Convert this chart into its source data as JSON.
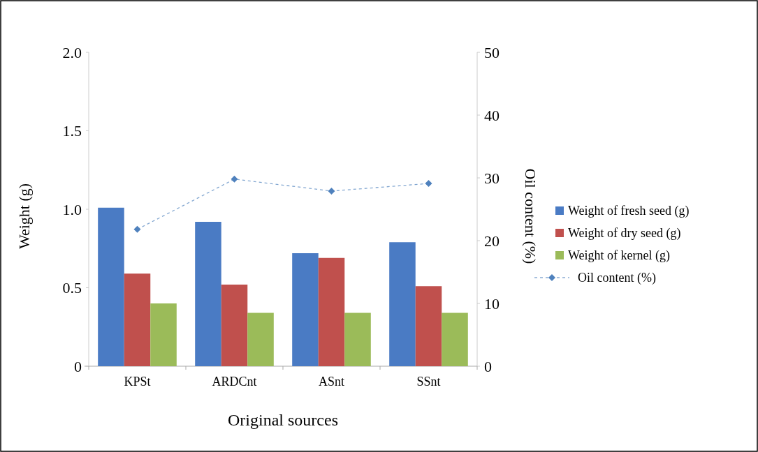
{
  "chart_data": {
    "type": "bar",
    "xlabel": "Original sources",
    "ylabel": "Weight (g)",
    "y2label": "Oil content (%)",
    "categories": [
      "KPSt",
      "ARDCnt",
      "ASnt",
      "SSnt"
    ],
    "series": [
      {
        "name": "Weight of  fresh seed (g)",
        "color": "#4a7bc4",
        "values": [
          1.01,
          0.92,
          0.72,
          0.79
        ]
      },
      {
        "name": "Weight of  dry seed (g)",
        "color": "#c0504d",
        "values": [
          0.59,
          0.52,
          0.69,
          0.51
        ]
      },
      {
        "name": "Weight of  kernel (g)",
        "color": "#9bbb59",
        "values": [
          0.4,
          0.34,
          0.34,
          0.34
        ]
      },
      {
        "name": "Oil content (%)",
        "type": "line",
        "axis": "y2",
        "color": "#4f81bd",
        "values": [
          21.8,
          29.8,
          27.9,
          29.1
        ],
        "marker": "diamond",
        "line_style": "dashed"
      }
    ],
    "ylim": [
      0,
      2
    ],
    "yticks": [
      {
        "value": 0,
        "label": "0"
      },
      0.5,
      {
        "value": 1,
        "label": "1.0"
      },
      1.5,
      {
        "value": 2,
        "label": "2.0"
      }
    ],
    "y2lim": [
      0,
      50
    ],
    "y2ticks": [
      0,
      10,
      20,
      30,
      40,
      50
    ],
    "grid": false,
    "legend": "right"
  }
}
